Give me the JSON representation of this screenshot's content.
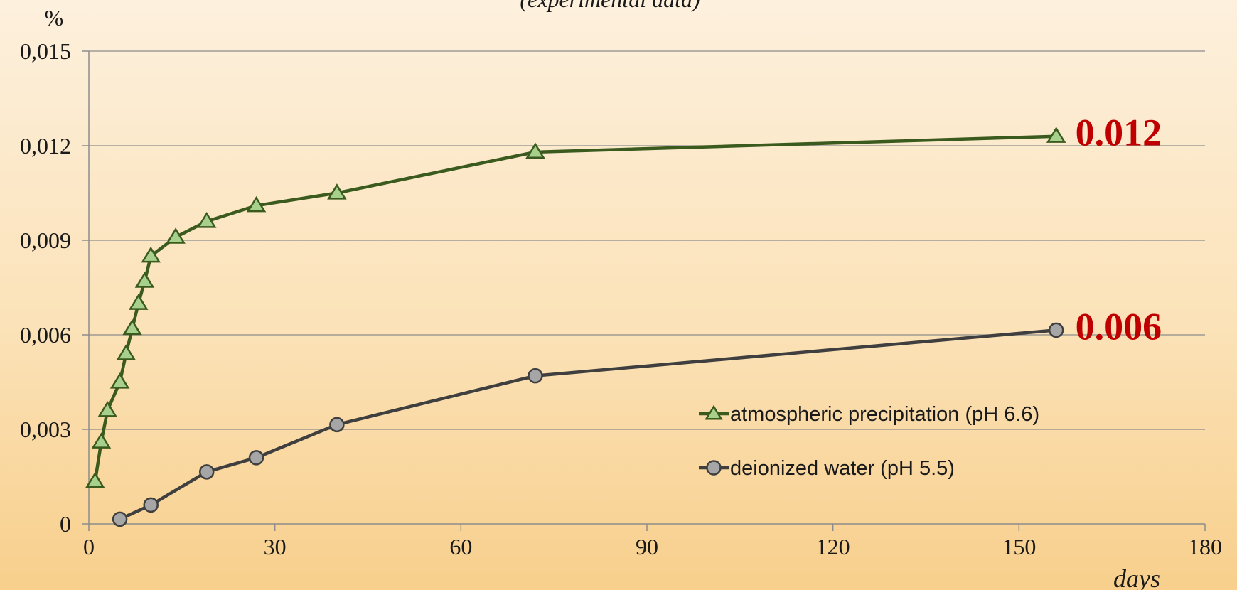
{
  "chart_data": {
    "type": "line",
    "subtitle": "(experimental data)",
    "y_unit_label": "%",
    "xlabel": "days",
    "xlim": [
      0,
      180
    ],
    "ylim": [
      0,
      0.015
    ],
    "x_ticks": [
      0,
      30,
      60,
      90,
      120,
      150,
      180
    ],
    "x_tick_labels": [
      "0",
      "30",
      "60",
      "90",
      "120",
      "150",
      "180"
    ],
    "y_ticks": [
      0,
      0.003,
      0.006,
      0.009,
      0.012,
      0.015
    ],
    "y_tick_labels": [
      "0",
      "0,003",
      "0,006",
      "0,009",
      "0,012",
      "0,015"
    ],
    "grid": true,
    "legend_position": "center-right",
    "series": [
      {
        "name": "atmospheric precipitation (pH 6.6)",
        "marker": "triangle",
        "line_color": "#3a5a1e",
        "marker_fill": "#a8d08d",
        "x": [
          1,
          2,
          3,
          5,
          6,
          7,
          8,
          9,
          10,
          14,
          19,
          27,
          40,
          72,
          156
        ],
        "y": [
          0.00135,
          0.0026,
          0.0036,
          0.0045,
          0.0054,
          0.0062,
          0.007,
          0.0077,
          0.0085,
          0.0091,
          0.0096,
          0.0101,
          0.0105,
          0.0118,
          0.0123
        ]
      },
      {
        "name": "deionized water (pH 5.5)",
        "marker": "circle",
        "line_color": "#3f3f3f",
        "marker_fill": "#a6a6a6",
        "x": [
          5,
          10,
          19,
          27,
          40,
          72,
          156
        ],
        "y": [
          0.00015,
          0.0006,
          0.00165,
          0.0021,
          0.00315,
          0.0047,
          0.00615
        ]
      }
    ],
    "annotations": [
      {
        "text": "0.012",
        "color": "#c00000"
      },
      {
        "text": "0.006",
        "color": "#c00000"
      }
    ]
  }
}
